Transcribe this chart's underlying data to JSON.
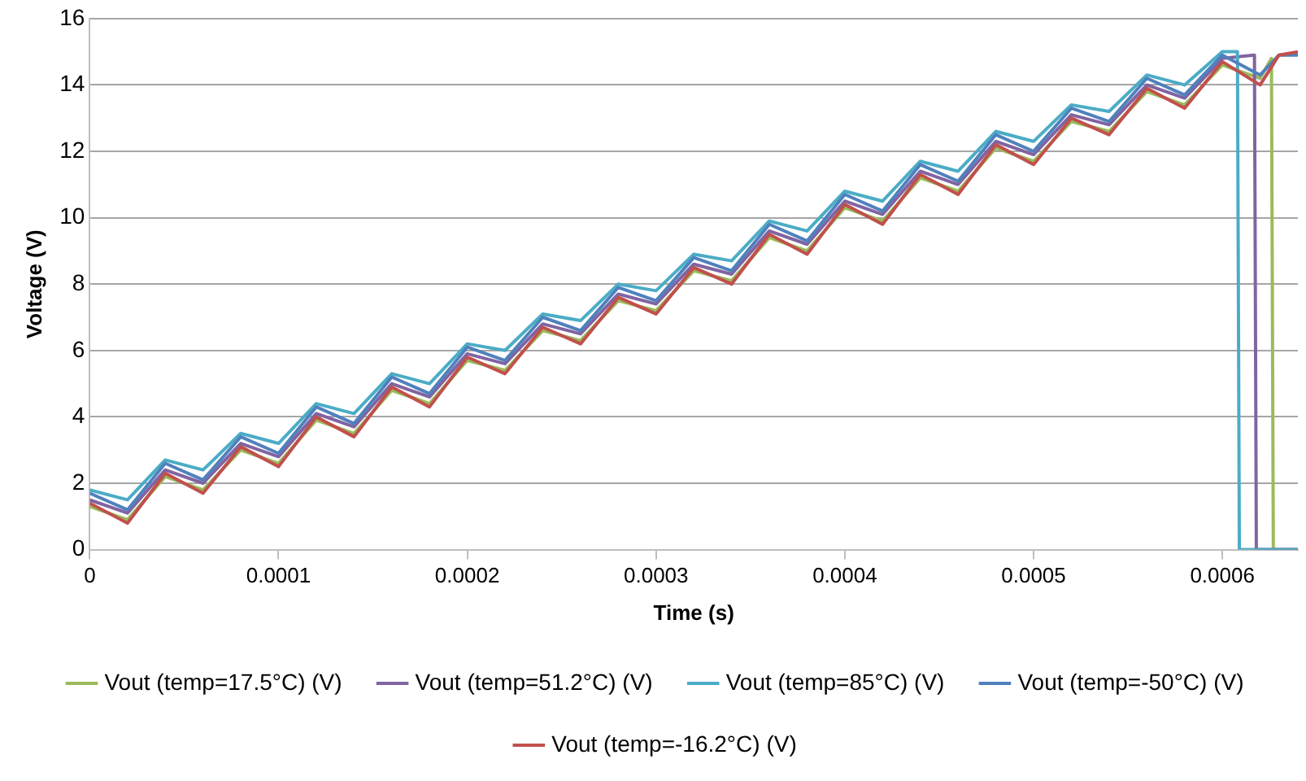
{
  "chart_data": {
    "type": "line",
    "xlabel": "Time (s)",
    "ylabel": "Voltage (V)",
    "xlim": [
      0,
      0.00064
    ],
    "xticks": [
      0,
      0.0001,
      0.0002,
      0.0003,
      0.0004,
      0.0005,
      0.0006
    ],
    "ylim": [
      0,
      16
    ],
    "yticks": [
      0,
      2,
      4,
      6,
      8,
      10,
      12,
      14,
      16
    ],
    "grid": "y",
    "legend": "bottom",
    "marker": "none",
    "line_style": "solid",
    "series": [
      {
        "name": "Vout (temp=17.5°C) (V)",
        "color": "#9bbb59",
        "x": [
          0,
          2e-05,
          4e-05,
          6e-05,
          8e-05,
          0.0001,
          0.00012,
          0.00014,
          0.00016,
          0.00018,
          0.0002,
          0.00022,
          0.00024,
          0.00026,
          0.00028,
          0.0003,
          0.00032,
          0.00034,
          0.00036,
          0.00038,
          0.0004,
          0.00042,
          0.00044,
          0.00046,
          0.00048,
          0.0005,
          0.00052,
          0.00054,
          0.00056,
          0.00058,
          0.0006,
          0.00062,
          0.000626,
          0.000627,
          0.00064
        ],
        "values": [
          1.3,
          0.9,
          2.2,
          1.8,
          3.0,
          2.6,
          3.9,
          3.5,
          4.8,
          4.4,
          5.7,
          5.4,
          6.6,
          6.3,
          7.5,
          7.2,
          8.4,
          8.1,
          9.4,
          9.0,
          10.3,
          9.9,
          11.2,
          10.8,
          12.1,
          11.7,
          12.9,
          12.6,
          13.8,
          13.4,
          14.6,
          14.2,
          14.8,
          0,
          0
        ]
      },
      {
        "name": "Vout (temp=51.2°C) (V)",
        "color": "#8064a2",
        "x": [
          0,
          2e-05,
          4e-05,
          6e-05,
          8e-05,
          0.0001,
          0.00012,
          0.00014,
          0.00016,
          0.00018,
          0.0002,
          0.00022,
          0.00024,
          0.00026,
          0.00028,
          0.0003,
          0.00032,
          0.00034,
          0.00036,
          0.00038,
          0.0004,
          0.00042,
          0.00044,
          0.00046,
          0.00048,
          0.0005,
          0.00052,
          0.00054,
          0.00056,
          0.00058,
          0.0006,
          0.000617,
          0.000618,
          0.00064
        ],
        "values": [
          1.5,
          1.1,
          2.4,
          2.0,
          3.2,
          2.8,
          4.1,
          3.7,
          5.0,
          4.6,
          5.9,
          5.6,
          6.8,
          6.5,
          7.7,
          7.4,
          8.6,
          8.3,
          9.6,
          9.2,
          10.5,
          10.1,
          11.4,
          11.0,
          12.3,
          11.9,
          13.1,
          12.8,
          14.0,
          13.6,
          14.8,
          14.9,
          0,
          0
        ]
      },
      {
        "name": "Vout (temp=85°C) (V)",
        "color": "#4bacc6",
        "x": [
          0,
          2e-05,
          4e-05,
          6e-05,
          8e-05,
          0.0001,
          0.00012,
          0.00014,
          0.00016,
          0.00018,
          0.0002,
          0.00022,
          0.00024,
          0.00026,
          0.00028,
          0.0003,
          0.00032,
          0.00034,
          0.00036,
          0.00038,
          0.0004,
          0.00042,
          0.00044,
          0.00046,
          0.00048,
          0.0005,
          0.00052,
          0.00054,
          0.00056,
          0.00058,
          0.0006,
          0.000608,
          0.000609,
          0.00064
        ],
        "values": [
          1.8,
          1.5,
          2.7,
          2.4,
          3.5,
          3.2,
          4.4,
          4.1,
          5.3,
          5.0,
          6.2,
          6.0,
          7.1,
          6.9,
          8.0,
          7.8,
          8.9,
          8.7,
          9.9,
          9.6,
          10.8,
          10.5,
          11.7,
          11.4,
          12.6,
          12.3,
          13.4,
          13.2,
          14.3,
          14.0,
          15.0,
          15.0,
          0,
          0
        ]
      },
      {
        "name": "Vout (temp=-50°C) (V)",
        "color": "#4f81bd",
        "x": [
          0,
          2e-05,
          4e-05,
          6e-05,
          8e-05,
          0.0001,
          0.00012,
          0.00014,
          0.00016,
          0.00018,
          0.0002,
          0.00022,
          0.00024,
          0.00026,
          0.00028,
          0.0003,
          0.00032,
          0.00034,
          0.00036,
          0.00038,
          0.0004,
          0.00042,
          0.00044,
          0.00046,
          0.00048,
          0.0005,
          0.00052,
          0.00054,
          0.00056,
          0.00058,
          0.0006,
          0.00062,
          0.00063,
          0.00064
        ],
        "values": [
          1.7,
          1.2,
          2.6,
          2.1,
          3.4,
          2.9,
          4.3,
          3.8,
          5.2,
          4.7,
          6.1,
          5.7,
          7.0,
          6.6,
          7.9,
          7.5,
          8.8,
          8.4,
          9.8,
          9.3,
          10.7,
          10.2,
          11.6,
          11.1,
          12.5,
          12.0,
          13.3,
          12.9,
          14.2,
          13.7,
          14.9,
          14.3,
          14.9,
          14.9
        ]
      },
      {
        "name": "Vout (temp=-16.2°C) (V)",
        "color": "#c0504d",
        "x": [
          0,
          2e-05,
          4e-05,
          6e-05,
          8e-05,
          0.0001,
          0.00012,
          0.00014,
          0.00016,
          0.00018,
          0.0002,
          0.00022,
          0.00024,
          0.00026,
          0.00028,
          0.0003,
          0.00032,
          0.00034,
          0.00036,
          0.00038,
          0.0004,
          0.00042,
          0.00044,
          0.00046,
          0.00048,
          0.0005,
          0.00052,
          0.00054,
          0.00056,
          0.00058,
          0.0006,
          0.00062,
          0.00063,
          0.00064
        ],
        "values": [
          1.4,
          0.8,
          2.3,
          1.7,
          3.1,
          2.5,
          4.0,
          3.4,
          4.9,
          4.3,
          5.8,
          5.3,
          6.7,
          6.2,
          7.6,
          7.1,
          8.5,
          8.0,
          9.5,
          8.9,
          10.4,
          9.8,
          11.3,
          10.7,
          12.2,
          11.6,
          13.0,
          12.5,
          13.9,
          13.3,
          14.7,
          14.0,
          14.9,
          15.0
        ]
      }
    ]
  }
}
